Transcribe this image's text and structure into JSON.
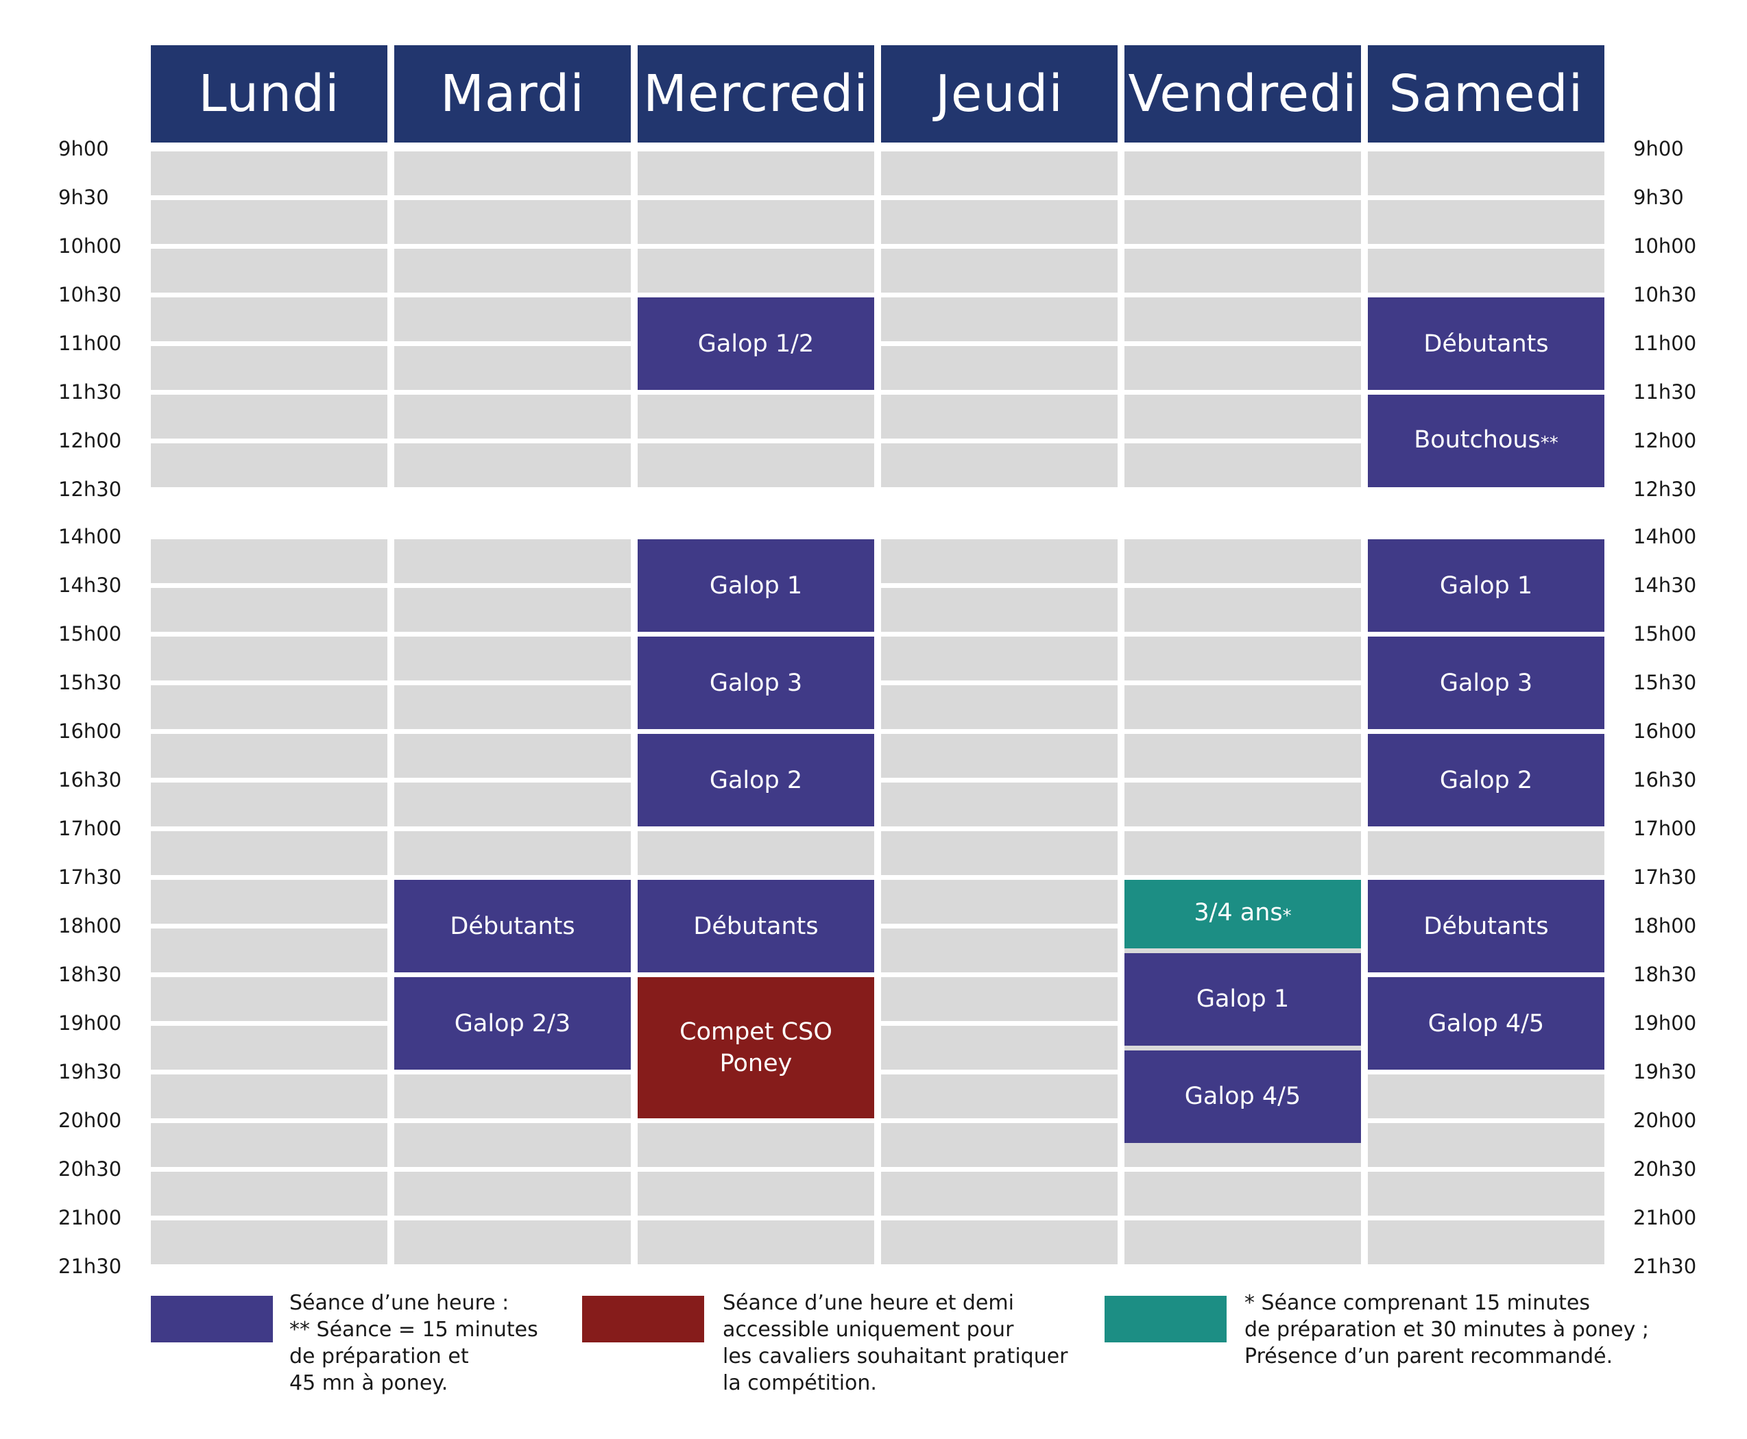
{
  "colors": {
    "header": "#22366e",
    "slot_empty": "#d9d9d9",
    "session_hour": "#403a87",
    "session_competition": "#861c1b",
    "session_short": "#1c8e84"
  },
  "days": [
    "Lundi",
    "Mardi",
    "Mercredi",
    "Jeudi",
    "Vendredi",
    "Samedi"
  ],
  "times": [
    "9h00",
    "9h30",
    "10h00",
    "10h30",
    "11h00",
    "11h30",
    "12h00",
    "12h30",
    "14h00",
    "14h30",
    "15h00",
    "15h30",
    "16h00",
    "16h30",
    "17h00",
    "17h30",
    "18h00",
    "18h30",
    "19h00",
    "19h30",
    "20h00",
    "20h30",
    "21h00",
    "21h30"
  ],
  "sessions": [
    {
      "day": "Mercredi",
      "label": "Galop 1/2",
      "marker": "",
      "start": "10h30",
      "end": "11h30",
      "type": "hour"
    },
    {
      "day": "Samedi",
      "label": "Débutants",
      "marker": "",
      "start": "10h30",
      "end": "11h30",
      "type": "hour"
    },
    {
      "day": "Samedi",
      "label": "Boutchous",
      "marker": "**",
      "start": "11h30",
      "end": "12h30",
      "type": "hour"
    },
    {
      "day": "Mercredi",
      "label": "Galop 1",
      "marker": "",
      "start": "14h00",
      "end": "15h00",
      "type": "hour"
    },
    {
      "day": "Samedi",
      "label": "Galop 1",
      "marker": "",
      "start": "14h00",
      "end": "15h00",
      "type": "hour"
    },
    {
      "day": "Mercredi",
      "label": "Galop 3",
      "marker": "",
      "start": "15h00",
      "end": "16h00",
      "type": "hour"
    },
    {
      "day": "Samedi",
      "label": "Galop 3",
      "marker": "",
      "start": "15h00",
      "end": "16h00",
      "type": "hour"
    },
    {
      "day": "Mercredi",
      "label": "Galop 2",
      "marker": "",
      "start": "16h00",
      "end": "17h00",
      "type": "hour"
    },
    {
      "day": "Samedi",
      "label": "Galop 2",
      "marker": "",
      "start": "16h00",
      "end": "17h00",
      "type": "hour"
    },
    {
      "day": "Mardi",
      "label": "Débutants",
      "marker": "",
      "start": "17h30",
      "end": "18h30",
      "type": "hour"
    },
    {
      "day": "Mercredi",
      "label": "Débutants",
      "marker": "",
      "start": "17h30",
      "end": "18h30",
      "type": "hour"
    },
    {
      "day": "Vendredi",
      "label": "3/4 ans",
      "marker": "*",
      "start": "17h30",
      "end": "18h15",
      "type": "short"
    },
    {
      "day": "Samedi",
      "label": "Débutants",
      "marker": "",
      "start": "17h30",
      "end": "18h30",
      "type": "hour"
    },
    {
      "day": "Vendredi",
      "label": "Galop 1",
      "marker": "",
      "start": "18h15",
      "end": "19h15",
      "type": "hour"
    },
    {
      "day": "Mardi",
      "label": "Galop 2/3",
      "marker": "",
      "start": "18h30",
      "end": "19h30",
      "type": "hour"
    },
    {
      "day": "Mercredi",
      "label": "Compet CSO\nPoney",
      "marker": "",
      "start": "18h30",
      "end": "20h00",
      "type": "competition"
    },
    {
      "day": "Samedi",
      "label": "Galop 4/5",
      "marker": "",
      "start": "18h30",
      "end": "19h30",
      "type": "hour"
    },
    {
      "day": "Vendredi",
      "label": "Galop 4/5",
      "marker": "",
      "start": "19h15",
      "end": "20h15",
      "type": "hour"
    }
  ],
  "legend": [
    {
      "type": "hour",
      "lines": [
        "Séance d’une heure :",
        "** Séance = 15 minutes",
        "de préparation et",
        "45 mn à poney."
      ]
    },
    {
      "type": "competition",
      "lines": [
        "Séance d’une heure et demi",
        "accessible uniquement pour",
        "les cavaliers souhaitant pratiquer",
        "la compétition."
      ]
    },
    {
      "type": "short",
      "lines": [
        "* Séance comprenant 15 minutes",
        "de préparation et 30 minutes à poney ;",
        "Présence d’un parent recommandé."
      ]
    }
  ]
}
